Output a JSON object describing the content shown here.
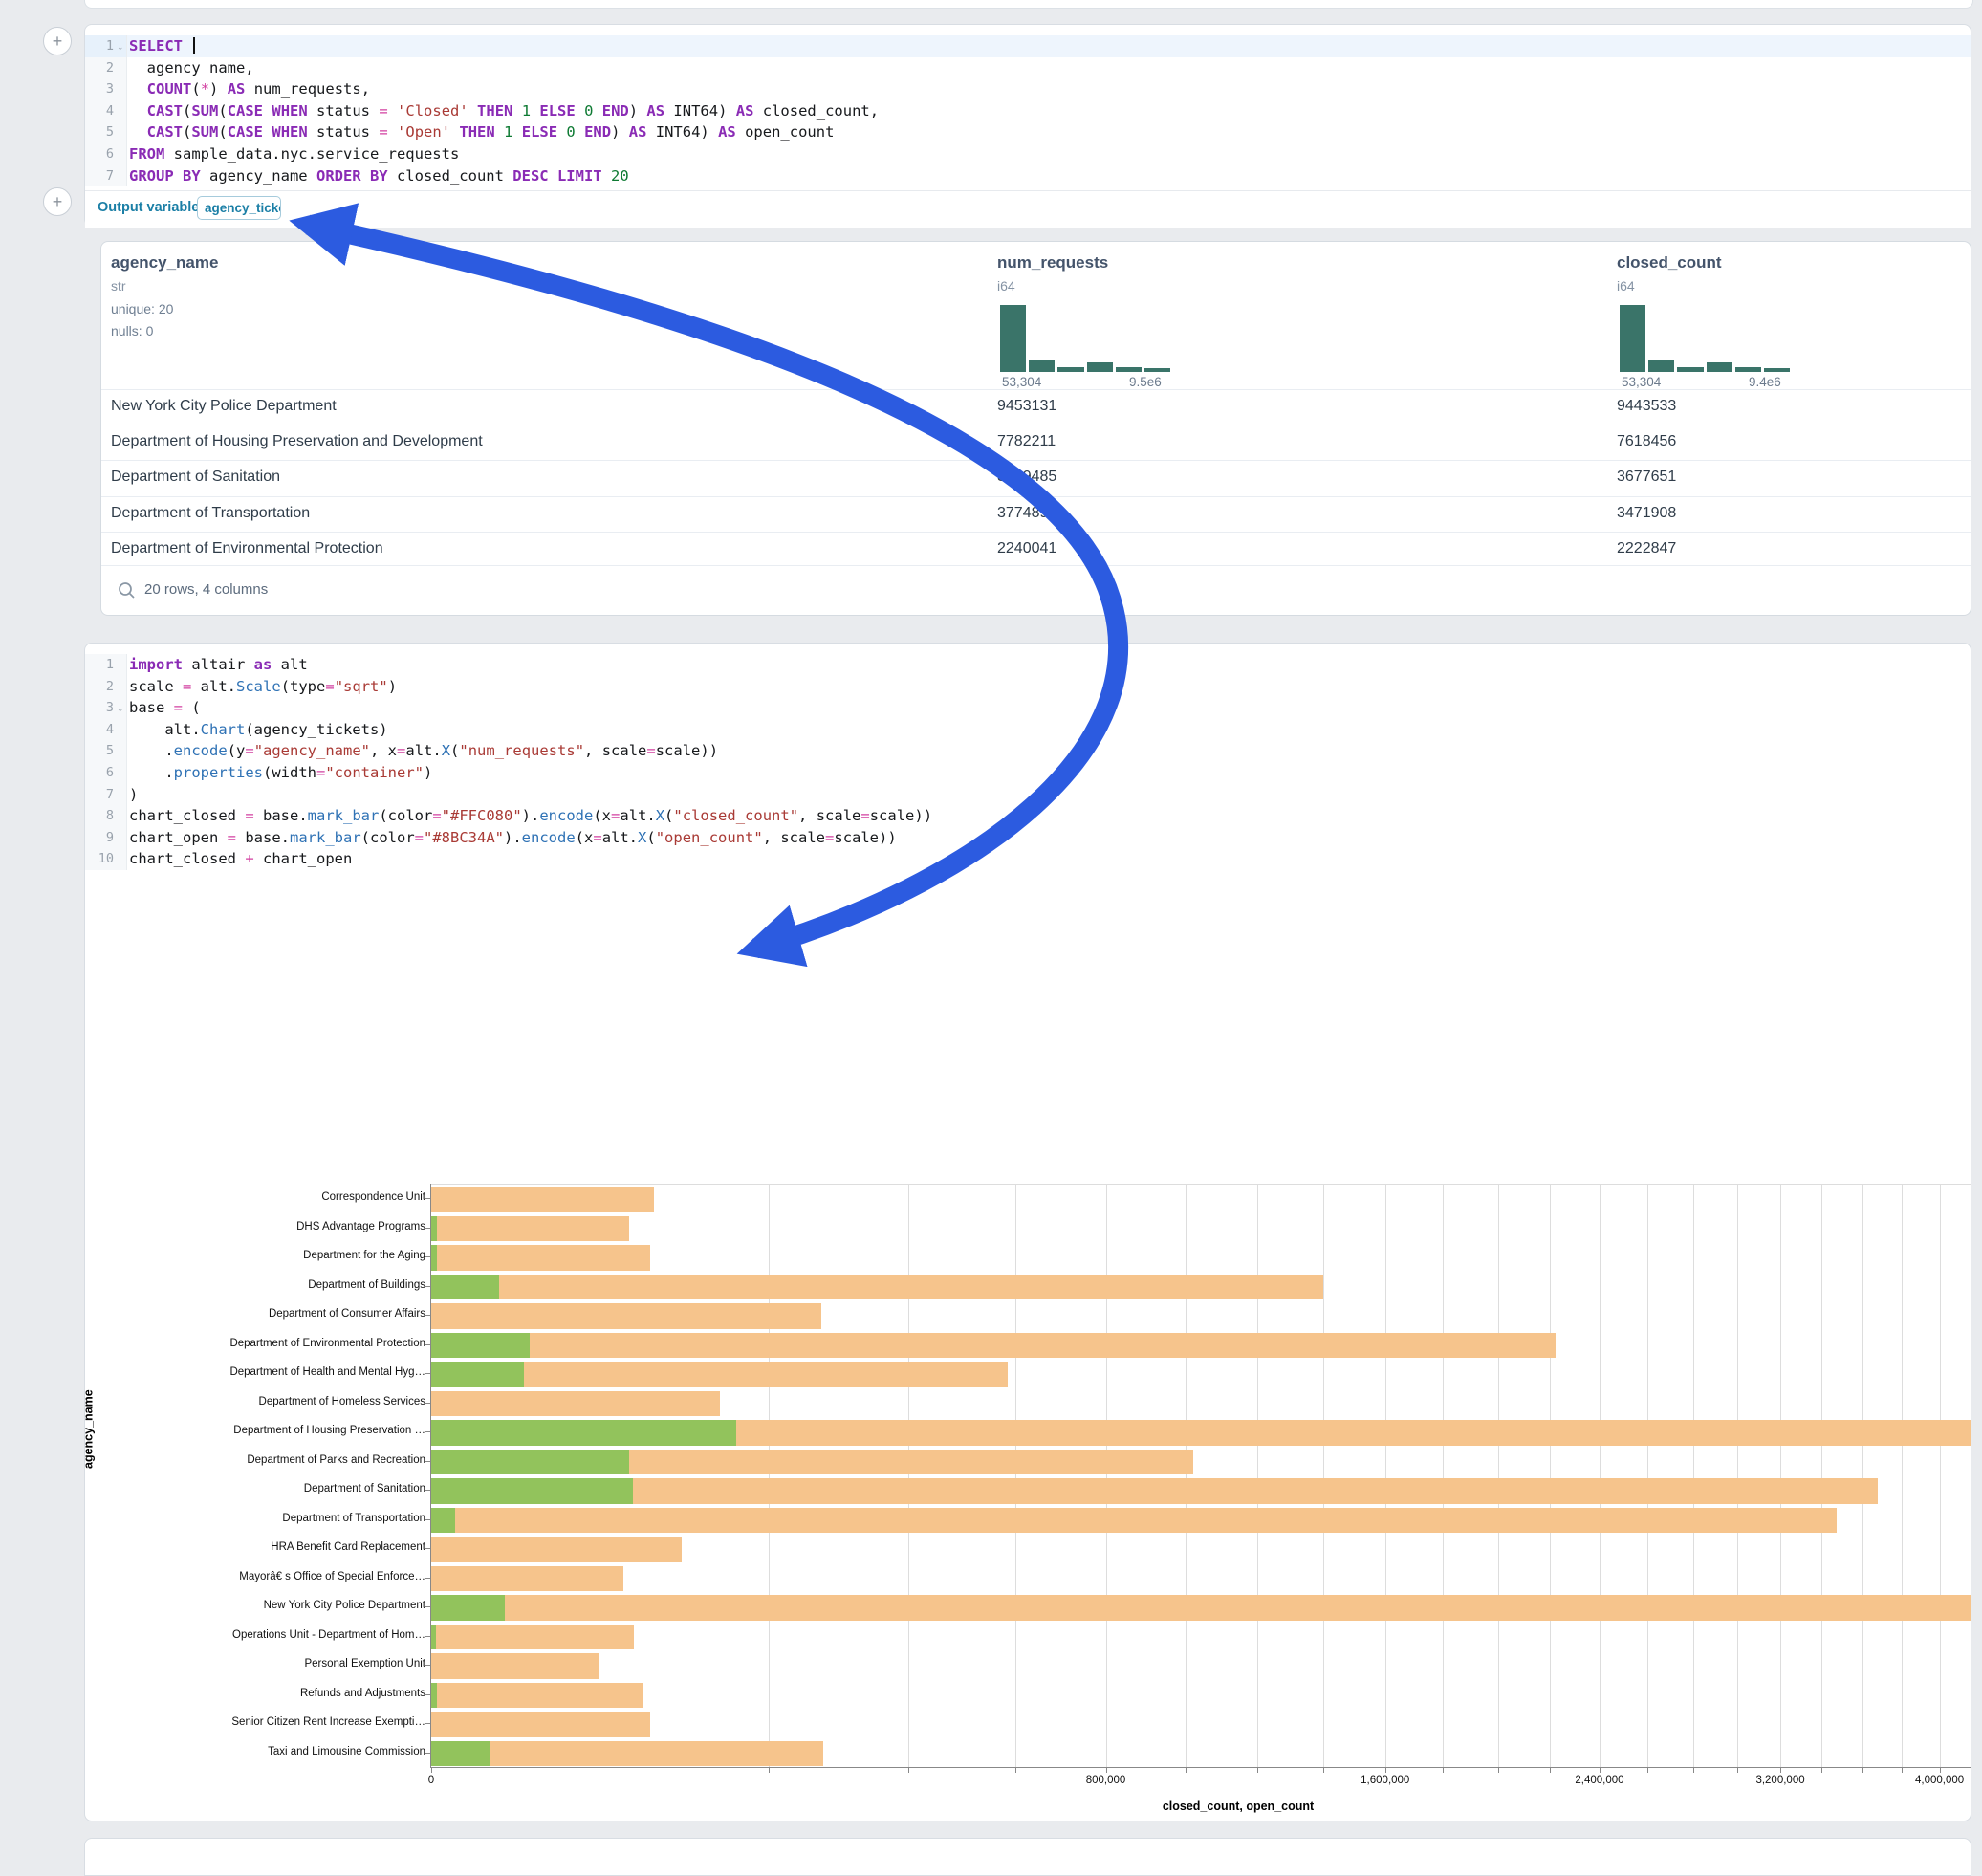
{
  "sql_cell": {
    "lines": [
      {
        "n": "1",
        "chev": true,
        "hl": true,
        "caret": true,
        "tokens": [
          {
            "t": "SELECT ",
            "c": "kw"
          }
        ]
      },
      {
        "n": "2",
        "tokens": [
          {
            "t": "  agency_name,",
            "c": "pl"
          }
        ]
      },
      {
        "n": "3",
        "tokens": [
          {
            "t": "  ",
            "c": "pl"
          },
          {
            "t": "COUNT",
            "c": "kw"
          },
          {
            "t": "(",
            "c": "pl"
          },
          {
            "t": "*",
            "c": "op"
          },
          {
            "t": ") ",
            "c": "pl"
          },
          {
            "t": "AS",
            "c": "kw"
          },
          {
            "t": " num_requests,",
            "c": "pl"
          }
        ]
      },
      {
        "n": "4",
        "tokens": [
          {
            "t": "  ",
            "c": "pl"
          },
          {
            "t": "CAST",
            "c": "kw"
          },
          {
            "t": "(",
            "c": "pl"
          },
          {
            "t": "SUM",
            "c": "kw"
          },
          {
            "t": "(",
            "c": "pl"
          },
          {
            "t": "CASE",
            "c": "kw"
          },
          {
            "t": " ",
            "c": "pl"
          },
          {
            "t": "WHEN",
            "c": "kw"
          },
          {
            "t": " status ",
            "c": "pl"
          },
          {
            "t": "=",
            "c": "op"
          },
          {
            "t": " ",
            "c": "pl"
          },
          {
            "t": "'Closed'",
            "c": "str"
          },
          {
            "t": " ",
            "c": "pl"
          },
          {
            "t": "THEN",
            "c": "kw"
          },
          {
            "t": " ",
            "c": "pl"
          },
          {
            "t": "1",
            "c": "num"
          },
          {
            "t": " ",
            "c": "pl"
          },
          {
            "t": "ELSE",
            "c": "kw"
          },
          {
            "t": " ",
            "c": "pl"
          },
          {
            "t": "0",
            "c": "num"
          },
          {
            "t": " ",
            "c": "pl"
          },
          {
            "t": "END",
            "c": "kw"
          },
          {
            "t": ") ",
            "c": "pl"
          },
          {
            "t": "AS",
            "c": "kw"
          },
          {
            "t": " INT64) ",
            "c": "pl"
          },
          {
            "t": "AS",
            "c": "kw"
          },
          {
            "t": " closed_count,",
            "c": "pl"
          }
        ]
      },
      {
        "n": "5",
        "tokens": [
          {
            "t": "  ",
            "c": "pl"
          },
          {
            "t": "CAST",
            "c": "kw"
          },
          {
            "t": "(",
            "c": "pl"
          },
          {
            "t": "SUM",
            "c": "kw"
          },
          {
            "t": "(",
            "c": "pl"
          },
          {
            "t": "CASE",
            "c": "kw"
          },
          {
            "t": " ",
            "c": "pl"
          },
          {
            "t": "WHEN",
            "c": "kw"
          },
          {
            "t": " status ",
            "c": "pl"
          },
          {
            "t": "=",
            "c": "op"
          },
          {
            "t": " ",
            "c": "pl"
          },
          {
            "t": "'Open'",
            "c": "str"
          },
          {
            "t": " ",
            "c": "pl"
          },
          {
            "t": "THEN",
            "c": "kw"
          },
          {
            "t": " ",
            "c": "pl"
          },
          {
            "t": "1",
            "c": "num"
          },
          {
            "t": " ",
            "c": "pl"
          },
          {
            "t": "ELSE",
            "c": "kw"
          },
          {
            "t": " ",
            "c": "pl"
          },
          {
            "t": "0",
            "c": "num"
          },
          {
            "t": " ",
            "c": "pl"
          },
          {
            "t": "END",
            "c": "kw"
          },
          {
            "t": ") ",
            "c": "pl"
          },
          {
            "t": "AS",
            "c": "kw"
          },
          {
            "t": " INT64) ",
            "c": "pl"
          },
          {
            "t": "AS",
            "c": "kw"
          },
          {
            "t": " open_count",
            "c": "pl"
          }
        ]
      },
      {
        "n": "6",
        "tokens": [
          {
            "t": "FROM",
            "c": "kw"
          },
          {
            "t": " sample_data.nyc.service_requests",
            "c": "pl"
          }
        ]
      },
      {
        "n": "7",
        "tokens": [
          {
            "t": "GROUP BY",
            "c": "kw"
          },
          {
            "t": " agency_name ",
            "c": "pl"
          },
          {
            "t": "ORDER BY",
            "c": "kw"
          },
          {
            "t": " closed_count ",
            "c": "pl"
          },
          {
            "t": "DESC",
            "c": "kw"
          },
          {
            "t": " ",
            "c": "pl"
          },
          {
            "t": "LIMIT",
            "c": "kw"
          },
          {
            "t": " ",
            "c": "pl"
          },
          {
            "t": "20",
            "c": "num"
          }
        ]
      }
    ],
    "output_variable_label": "Output variable:",
    "output_variable_value": "agency_tickets",
    "add_button_glyph": "+"
  },
  "table": {
    "columns": [
      {
        "name": "agency_name",
        "type": "str",
        "stats": [
          "unique: 20",
          "nulls: 0"
        ]
      },
      {
        "name": "num_requests",
        "type": "i64",
        "hist": {
          "bars": [
            1,
            0.17,
            0.07,
            0.14,
            0.07,
            0.06
          ],
          "min_label": "53,304",
          "max_label": "9.5e6"
        }
      },
      {
        "name": "closed_count",
        "type": "i64",
        "hist": {
          "bars": [
            1,
            0.17,
            0.07,
            0.14,
            0.07,
            0.06
          ],
          "min_label": "53,304",
          "max_label": "9.4e6"
        }
      }
    ],
    "rows": [
      [
        "New York City Police Department",
        "9453131",
        "9443533"
      ],
      [
        "Department of Housing Preservation and Development",
        "7782211",
        "7618456"
      ],
      [
        "Department of Sanitation",
        "3749485",
        "3677651"
      ],
      [
        "Department of Transportation",
        "3774892",
        "3471908"
      ],
      [
        "Department of Environmental Protection",
        "2240041",
        "2222847"
      ]
    ],
    "footer": "20 rows, 4 columns"
  },
  "python_cell": {
    "lines": [
      {
        "n": "1",
        "tokens": [
          {
            "t": "import",
            "c": "kw"
          },
          {
            "t": " altair ",
            "c": "pl"
          },
          {
            "t": "as",
            "c": "kw"
          },
          {
            "t": " alt",
            "c": "pl"
          }
        ]
      },
      {
        "n": "2",
        "tokens": [
          {
            "t": "scale ",
            "c": "pl"
          },
          {
            "t": "=",
            "c": "op"
          },
          {
            "t": " alt.",
            "c": "pl"
          },
          {
            "t": "Scale",
            "c": "fn"
          },
          {
            "t": "(type",
            "c": "pl"
          },
          {
            "t": "=",
            "c": "op"
          },
          {
            "t": "\"sqrt\"",
            "c": "str"
          },
          {
            "t": ")",
            "c": "pl"
          }
        ]
      },
      {
        "n": "3",
        "chev": true,
        "tokens": [
          {
            "t": "base ",
            "c": "pl"
          },
          {
            "t": "=",
            "c": "op"
          },
          {
            "t": " (",
            "c": "pl"
          }
        ]
      },
      {
        "n": "4",
        "tokens": [
          {
            "t": "    alt.",
            "c": "pl"
          },
          {
            "t": "Chart",
            "c": "fn"
          },
          {
            "t": "(agency_tickets)",
            "c": "pl"
          }
        ]
      },
      {
        "n": "5",
        "tokens": [
          {
            "t": "    .",
            "c": "pl"
          },
          {
            "t": "encode",
            "c": "fn"
          },
          {
            "t": "(y",
            "c": "pl"
          },
          {
            "t": "=",
            "c": "op"
          },
          {
            "t": "\"agency_name\"",
            "c": "str"
          },
          {
            "t": ", x",
            "c": "pl"
          },
          {
            "t": "=",
            "c": "op"
          },
          {
            "t": "alt.",
            "c": "pl"
          },
          {
            "t": "X",
            "c": "fn"
          },
          {
            "t": "(",
            "c": "pl"
          },
          {
            "t": "\"num_requests\"",
            "c": "str"
          },
          {
            "t": ", scale",
            "c": "pl"
          },
          {
            "t": "=",
            "c": "op"
          },
          {
            "t": "scale))",
            "c": "pl"
          }
        ]
      },
      {
        "n": "6",
        "tokens": [
          {
            "t": "    .",
            "c": "pl"
          },
          {
            "t": "properties",
            "c": "fn"
          },
          {
            "t": "(width",
            "c": "pl"
          },
          {
            "t": "=",
            "c": "op"
          },
          {
            "t": "\"container\"",
            "c": "str"
          },
          {
            "t": ")",
            "c": "pl"
          }
        ]
      },
      {
        "n": "7",
        "tokens": [
          {
            "t": ")",
            "c": "pl"
          }
        ]
      },
      {
        "n": "8",
        "tokens": [
          {
            "t": "chart_closed ",
            "c": "pl"
          },
          {
            "t": "=",
            "c": "op"
          },
          {
            "t": " base.",
            "c": "pl"
          },
          {
            "t": "mark_bar",
            "c": "fn"
          },
          {
            "t": "(color",
            "c": "pl"
          },
          {
            "t": "=",
            "c": "op"
          },
          {
            "t": "\"#FFC080\"",
            "c": "str"
          },
          {
            "t": ").",
            "c": "pl"
          },
          {
            "t": "encode",
            "c": "fn"
          },
          {
            "t": "(x",
            "c": "pl"
          },
          {
            "t": "=",
            "c": "op"
          },
          {
            "t": "alt.",
            "c": "pl"
          },
          {
            "t": "X",
            "c": "fn"
          },
          {
            "t": "(",
            "c": "pl"
          },
          {
            "t": "\"closed_count\"",
            "c": "str"
          },
          {
            "t": ", scale",
            "c": "pl"
          },
          {
            "t": "=",
            "c": "op"
          },
          {
            "t": "scale))",
            "c": "pl"
          }
        ]
      },
      {
        "n": "9",
        "tokens": [
          {
            "t": "chart_open ",
            "c": "pl"
          },
          {
            "t": "=",
            "c": "op"
          },
          {
            "t": " base.",
            "c": "pl"
          },
          {
            "t": "mark_bar",
            "c": "fn"
          },
          {
            "t": "(color",
            "c": "pl"
          },
          {
            "t": "=",
            "c": "op"
          },
          {
            "t": "\"#8BC34A\"",
            "c": "str"
          },
          {
            "t": ").",
            "c": "pl"
          },
          {
            "t": "encode",
            "c": "fn"
          },
          {
            "t": "(x",
            "c": "pl"
          },
          {
            "t": "=",
            "c": "op"
          },
          {
            "t": "alt.",
            "c": "pl"
          },
          {
            "t": "X",
            "c": "fn"
          },
          {
            "t": "(",
            "c": "pl"
          },
          {
            "t": "\"open_count\"",
            "c": "str"
          },
          {
            "t": ", scale",
            "c": "pl"
          },
          {
            "t": "=",
            "c": "op"
          },
          {
            "t": "scale))",
            "c": "pl"
          }
        ]
      },
      {
        "n": "10",
        "tokens": [
          {
            "t": "chart_closed ",
            "c": "pl"
          },
          {
            "t": "+",
            "c": "op"
          },
          {
            "t": " chart_open",
            "c": "pl"
          }
        ]
      }
    ]
  },
  "chart_data": {
    "type": "bar",
    "orientation": "horizontal",
    "scale_type": "sqrt",
    "xlabel": "closed_count, open_count",
    "ylabel": "agency_name",
    "xlim": [
      0,
      9443533
    ],
    "grid": true,
    "grid_step": 200000,
    "x_ticks": [
      {
        "v": 0,
        "label": "0"
      },
      {
        "v": 800000,
        "label": "800,000"
      },
      {
        "v": 1600000,
        "label": "1,600,000"
      },
      {
        "v": 2400000,
        "label": "2,400,000"
      },
      {
        "v": 3200000,
        "label": "3,200,000"
      },
      {
        "v": 4000000,
        "label": "4,000,000"
      }
    ],
    "categories": [
      "Correspondence Unit",
      "DHS Advantage Programs",
      "Department for the Aging",
      "Department of Buildings",
      "Department of Consumer Affairs",
      "Department of Environmental Protection",
      "Department of Health and Mental Hyg…",
      "Department of Homeless Services",
      "Department of Housing Preservation …",
      "Department of Parks and Recreation",
      "Department of Sanitation",
      "Department of Transportation",
      "HRA Benefit Card Replacement",
      "Mayorâ€ s Office of Special Enforce…",
      "New York City Police Department",
      "Operations Unit - Department of Hom…",
      "Personal Exemption Unit",
      "Refunds and Adjustments",
      "Senior Citizen Rent Increase Exempti…",
      "Taxi and Limousine Commission"
    ],
    "series": [
      {
        "name": "closed_count",
        "color": "#F6C48C",
        "values": [
          87000,
          69000,
          84000,
          1400000,
          268000,
          2222847,
          585000,
          147000,
          7618456,
          1020000,
          3677651,
          3471908,
          110000,
          65000,
          9443533,
          72000,
          50000,
          79000,
          84000,
          270000
        ]
      },
      {
        "name": "open_count",
        "color": "#92C35C",
        "values": [
          0,
          50,
          50,
          8000,
          0,
          17194,
          15000,
          0,
          163755,
          69000,
          71834,
          1000,
          0,
          0,
          9598,
          40,
          0,
          60,
          0,
          6000
        ]
      }
    ]
  },
  "annotation_arrow": {
    "color": "#2c5be0"
  }
}
